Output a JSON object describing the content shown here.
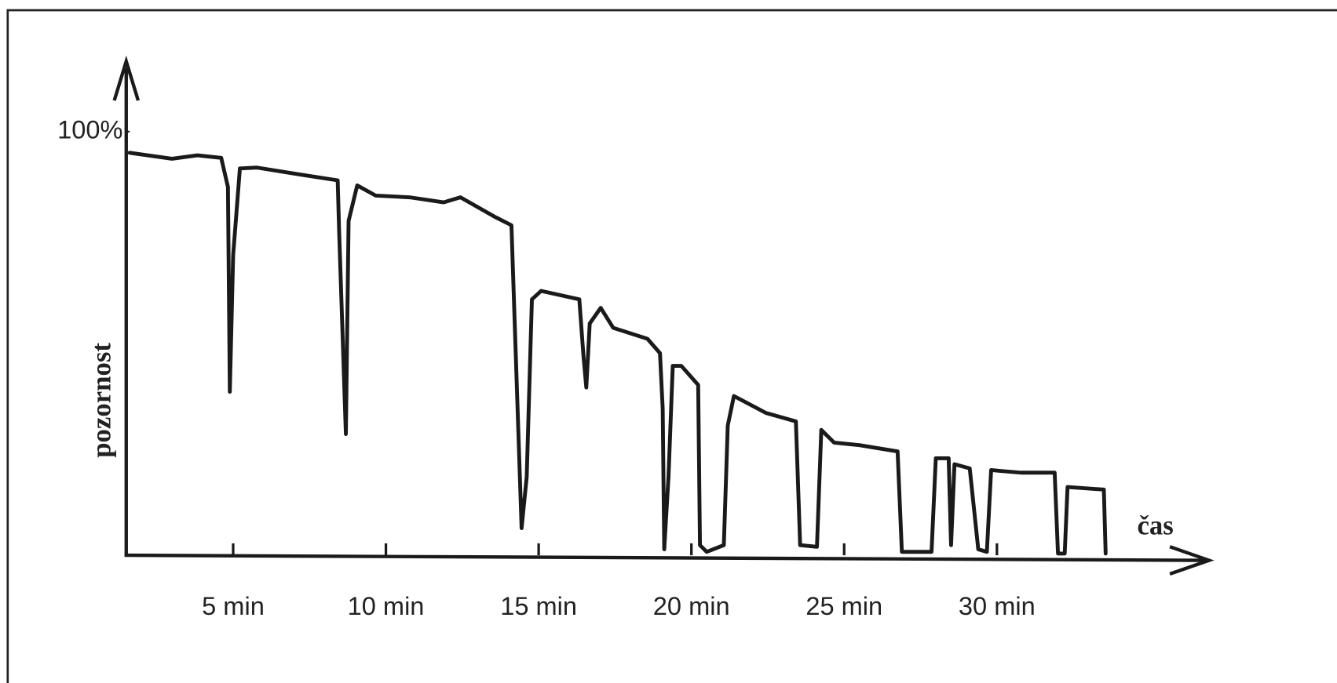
{
  "chart_data": {
    "type": "line",
    "xlabel": "čas",
    "ylabel": "pozornost",
    "xlim": [
      1.5,
      37
    ],
    "ylim": [
      0,
      117
    ],
    "xticks": [
      {
        "value": 5,
        "label": "5 min"
      },
      {
        "value": 10,
        "label": "10 min"
      },
      {
        "value": 15,
        "label": "15 min"
      },
      {
        "value": 20,
        "label": "20 min"
      },
      {
        "value": 25,
        "label": "25 min"
      },
      {
        "value": 30,
        "label": "30 min"
      }
    ],
    "yticks": [
      {
        "value": 100,
        "label": "100%"
      }
    ],
    "series": [
      {
        "name": null,
        "color": "#1a1a1a",
        "x": [
          1.61,
          3.0,
          3.83,
          4.61,
          4.83,
          4.89,
          5.0,
          5.22,
          5.78,
          7.17,
          8.42,
          8.47,
          8.69,
          8.78,
          9.06,
          9.67,
          10.78,
          11.89,
          12.44,
          13.56,
          14.11,
          14.19,
          14.44,
          14.61,
          14.78,
          15.08,
          16.33,
          16.47,
          16.56,
          16.67,
          17.03,
          17.44,
          18.56,
          18.97,
          19.06,
          19.11,
          19.25,
          19.39,
          19.67,
          20.22,
          20.28,
          20.5,
          21.06,
          21.19,
          21.39,
          22.44,
          23.42,
          23.56,
          24.11,
          24.25,
          24.67,
          25.5,
          26.75,
          26.89,
          27.86,
          28.0,
          28.42,
          28.5,
          28.61,
          29.11,
          29.39,
          29.67,
          29.81,
          30.78,
          31.89,
          32.0,
          32.22,
          32.31,
          33.5,
          33.56
        ],
        "values": [
          95.0,
          93.6,
          94.4,
          93.8,
          86.9,
          38.6,
          70.8,
          91.3,
          91.5,
          89.9,
          88.5,
          76.5,
          28.6,
          78.9,
          87.3,
          84.9,
          84.5,
          83.3,
          84.5,
          79.9,
          77.9,
          60.4,
          6.4,
          18.5,
          60.4,
          62.4,
          60.4,
          46.7,
          39.6,
          54.7,
          58.4,
          53.7,
          51.1,
          47.7,
          34.6,
          1.4,
          18.5,
          44.7,
          44.7,
          40.2,
          2.4,
          0.8,
          2.4,
          30.6,
          37.6,
          33.6,
          31.6,
          2.4,
          2.0,
          29.6,
          26.6,
          26.0,
          24.5,
          0.8,
          0.8,
          22.9,
          22.9,
          2.4,
          21.5,
          20.5,
          1.4,
          0.8,
          20.1,
          19.5,
          19.5,
          0.4,
          0.4,
          16.1,
          15.5,
          0.4
        ]
      }
    ]
  }
}
